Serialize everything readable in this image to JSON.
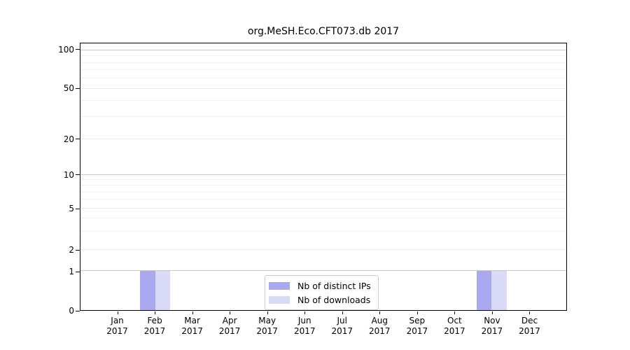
{
  "title": "org.MeSH.Eco.CFT073.db 2017",
  "chart_data": {
    "type": "bar",
    "title": "org.MeSH.Eco.CFT073.db 2017",
    "categories": [
      "Jan 2017",
      "Feb 2017",
      "Mar 2017",
      "Apr 2017",
      "May 2017",
      "Jun 2017",
      "Jul 2017",
      "Aug 2017",
      "Sep 2017",
      "Oct 2017",
      "Nov 2017",
      "Dec 2017"
    ],
    "series": [
      {
        "name": "Nb of distinct IPs",
        "color": "#a9a9f2",
        "values": [
          0,
          1,
          0,
          0,
          0,
          0,
          0,
          0,
          0,
          0,
          1,
          0
        ]
      },
      {
        "name": "Nb of downloads",
        "color": "#d9d9f8",
        "values": [
          0,
          1,
          0,
          0,
          0,
          0,
          0,
          0,
          0,
          0,
          1,
          0
        ]
      }
    ],
    "xlabel": "",
    "ylabel": "",
    "y_ticks": [
      0,
      1,
      2,
      5,
      10,
      20,
      50,
      100
    ],
    "y_minor_ticks": [
      3,
      4,
      6,
      7,
      8,
      9,
      30,
      40,
      60,
      70,
      80,
      90
    ],
    "decade_ticks": [
      1,
      10,
      100
    ],
    "y_scale": "log-above-1",
    "y_scale_anchors": {
      "0": 0,
      "1": 0.146,
      "2": 0.227,
      "5": 0.381,
      "10": 0.507,
      "20": 0.64,
      "50": 0.83,
      "100": 0.974
    },
    "ylim": [
      0,
      110
    ],
    "xlim": [
      -1,
      12
    ],
    "bar_width": 0.4,
    "grid": "horizontal",
    "legend_position": "lower center"
  }
}
